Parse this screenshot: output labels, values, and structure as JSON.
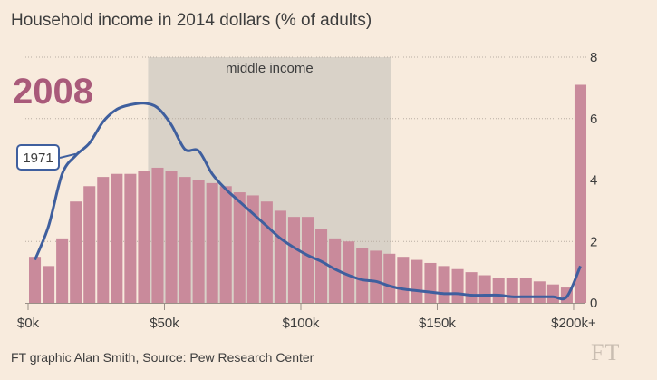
{
  "header": {
    "title": "Household income in 2014 dollars (% of adults)"
  },
  "footer": {
    "credit": "FT graphic Alan Smith, Source: Pew Research Center",
    "logo": "FT"
  },
  "colors": {
    "background": "#f8ebdd",
    "bars": "#c98a9b",
    "line_1971": "#3f5f9e",
    "middle_band": "#d9d2c8",
    "year_label": "#a95a7a",
    "text": "#3d3d3d"
  },
  "chart_data": {
    "type": "bar",
    "year_label": "2008",
    "band_label": "middle income",
    "band_range": [
      44,
      133
    ],
    "xlim": [
      -1,
      204
    ],
    "ylim": [
      0,
      8
    ],
    "y_ticks": [
      0,
      2,
      4,
      6,
      8
    ],
    "x_ticks": [
      {
        "value": 0,
        "label": "$0k"
      },
      {
        "value": 50,
        "label": "$50k"
      },
      {
        "value": 100,
        "label": "$100k"
      },
      {
        "value": 150,
        "label": "$150k"
      },
      {
        "value": 200,
        "label": "$200k+"
      }
    ],
    "series": [
      {
        "name": "2008",
        "kind": "bars",
        "bin_width": 5,
        "x": [
          2.5,
          7.5,
          12.5,
          17.5,
          22.5,
          27.5,
          32.5,
          37.5,
          42.5,
          47.5,
          52.5,
          57.5,
          62.5,
          67.5,
          72.5,
          77.5,
          82.5,
          87.5,
          92.5,
          97.5,
          102.5,
          107.5,
          112.5,
          117.5,
          122.5,
          127.5,
          132.5,
          137.5,
          142.5,
          147.5,
          152.5,
          157.5,
          162.5,
          167.5,
          172.5,
          177.5,
          182.5,
          187.5,
          192.5,
          197.5,
          202.5
        ],
        "values": [
          1.5,
          1.2,
          2.1,
          3.3,
          3.8,
          4.1,
          4.2,
          4.2,
          4.3,
          4.4,
          4.3,
          4.1,
          4.0,
          3.9,
          3.8,
          3.6,
          3.5,
          3.3,
          3.0,
          2.8,
          2.8,
          2.4,
          2.1,
          2.0,
          1.8,
          1.7,
          1.6,
          1.5,
          1.4,
          1.3,
          1.2,
          1.1,
          1.0,
          0.9,
          0.8,
          0.8,
          0.8,
          0.7,
          0.6,
          0.5,
          7.1
        ]
      },
      {
        "name": "1971",
        "kind": "line",
        "x": [
          2.5,
          7.5,
          12.5,
          17.5,
          22.5,
          27.5,
          32.5,
          37.5,
          42.5,
          47.5,
          52.5,
          57.5,
          62.5,
          67.5,
          72.5,
          77.5,
          82.5,
          87.5,
          92.5,
          97.5,
          102.5,
          107.5,
          112.5,
          117.5,
          122.5,
          127.5,
          132.5,
          137.5,
          142.5,
          147.5,
          152.5,
          157.5,
          162.5,
          167.5,
          172.5,
          177.5,
          182.5,
          187.5,
          192.5,
          197.5,
          202.5
        ],
        "values": [
          1.4,
          2.5,
          4.2,
          4.8,
          5.2,
          5.9,
          6.3,
          6.45,
          6.5,
          6.35,
          5.8,
          5.0,
          4.95,
          4.2,
          3.7,
          3.3,
          2.9,
          2.5,
          2.1,
          1.8,
          1.55,
          1.35,
          1.1,
          0.9,
          0.75,
          0.7,
          0.55,
          0.45,
          0.4,
          0.35,
          0.3,
          0.3,
          0.25,
          0.25,
          0.25,
          0.2,
          0.2,
          0.2,
          0.2,
          0.2,
          1.2
        ]
      }
    ]
  }
}
